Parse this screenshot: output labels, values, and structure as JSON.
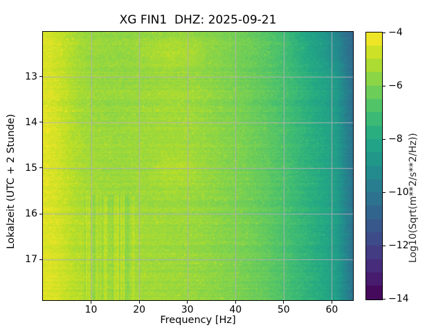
{
  "chart_data": {
    "type": "heatmap",
    "title": "XG FIN1  DHZ: 2025-09-21",
    "xlabel": "Frequency [Hz]",
    "ylabel": "Lokalzeit (UTC + 2 Stunde)",
    "colorbar_label": "Log10(Sqrt(m**2/s**2/Hz))",
    "colormap": "viridis",
    "xlim": [
      0,
      64.4
    ],
    "ylim_hours": [
      12.02,
      17.89
    ],
    "xticks": [
      10,
      20,
      30,
      40,
      50,
      60
    ],
    "yticks": [
      13,
      14,
      15,
      16,
      17
    ],
    "colorbar_ticks": [
      -4,
      -6,
      -8,
      -10,
      -12,
      -14
    ],
    "clim": [
      -14,
      -4
    ],
    "grid": true,
    "freq_bins": [
      0,
      1.5,
      3,
      5,
      7,
      9,
      12,
      15,
      18,
      22,
      26,
      30,
      34,
      38,
      42,
      46,
      50,
      54,
      58,
      61,
      63,
      64.4
    ],
    "time_bins": [
      12.05,
      12.5,
      13.0,
      13.5,
      14.0,
      14.5,
      15.0,
      15.5,
      16.0,
      16.5,
      17.0,
      17.5,
      17.89
    ],
    "values": [
      [
        -4.5,
        -4.6,
        -4.75,
        -5.0,
        -5.3,
        -5.45,
        -5.55,
        -5.6,
        -5.6,
        -5.55,
        -5.5,
        -5.55,
        -5.7,
        -5.9,
        -6.15,
        -6.5,
        -7.0,
        -7.9,
        -8.6,
        -9.3,
        -10.2,
        -10.6
      ],
      [
        -4.5,
        -4.6,
        -4.75,
        -5.0,
        -5.3,
        -5.45,
        -5.55,
        -5.6,
        -5.6,
        -5.3,
        -5.15,
        -5.2,
        -5.6,
        -5.9,
        -6.15,
        -6.5,
        -7.0,
        -7.8,
        -8.5,
        -9.2,
        -10.1,
        -10.5
      ],
      [
        -4.5,
        -4.6,
        -4.75,
        -5.0,
        -5.3,
        -5.45,
        -5.55,
        -5.6,
        -5.6,
        -5.55,
        -5.5,
        -5.55,
        -5.7,
        -5.9,
        -6.15,
        -6.5,
        -6.95,
        -7.55,
        -8.1,
        -8.6,
        -9.7,
        -10.3
      ],
      [
        -4.5,
        -4.6,
        -4.75,
        -5.0,
        -5.3,
        -5.45,
        -5.55,
        -5.6,
        -5.55,
        -5.45,
        -5.35,
        -5.4,
        -5.6,
        -5.85,
        -6.1,
        -6.5,
        -6.95,
        -7.55,
        -8.1,
        -8.6,
        -9.7,
        -10.3
      ],
      [
        -4.4,
        -4.5,
        -4.7,
        -5.0,
        -5.3,
        -5.45,
        -5.55,
        -5.6,
        -5.55,
        -5.45,
        -5.4,
        -5.4,
        -5.65,
        -5.85,
        -6.1,
        -6.45,
        -6.9,
        -7.5,
        -8.05,
        -8.55,
        -9.65,
        -10.3
      ],
      [
        -4.45,
        -4.55,
        -4.7,
        -5.0,
        -5.25,
        -5.4,
        -5.5,
        -5.55,
        -5.55,
        -5.5,
        -5.45,
        -5.5,
        -5.65,
        -5.85,
        -6.1,
        -6.45,
        -6.9,
        -7.5,
        -8.0,
        -8.5,
        -9.6,
        -10.2
      ],
      [
        -4.5,
        -4.6,
        -4.7,
        -5.0,
        -5.25,
        -5.4,
        -5.5,
        -5.55,
        -5.55,
        -5.45,
        -5.15,
        -5.2,
        -5.6,
        -5.85,
        -6.1,
        -6.45,
        -6.9,
        -7.5,
        -8.0,
        -8.5,
        -9.6,
        -10.2
      ],
      [
        -4.45,
        -4.55,
        -4.7,
        -4.95,
        -5.2,
        -5.35,
        -5.45,
        -5.5,
        -5.55,
        -5.5,
        -5.45,
        -5.5,
        -5.65,
        -5.85,
        -6.1,
        -6.45,
        -6.9,
        -7.45,
        -8.0,
        -8.5,
        -9.6,
        -10.2
      ],
      [
        -4.45,
        -4.55,
        -4.65,
        -4.9,
        -5.15,
        -5.2,
        -5.25,
        -5.3,
        -5.35,
        -5.45,
        -5.45,
        -5.5,
        -5.65,
        -5.85,
        -6.1,
        -6.4,
        -6.85,
        -7.45,
        -7.95,
        -8.45,
        -9.55,
        -10.15
      ],
      [
        -4.45,
        -4.5,
        -4.6,
        -4.9,
        -5.1,
        -5.15,
        -5.2,
        -5.25,
        -5.3,
        -5.4,
        -5.45,
        -5.5,
        -5.65,
        -5.8,
        -5.95,
        -6.35,
        -6.85,
        -7.4,
        -7.95,
        -8.45,
        -9.55,
        -10.15
      ],
      [
        -4.5,
        -4.55,
        -4.65,
        -4.9,
        -5.15,
        -5.25,
        -5.3,
        -5.3,
        -5.4,
        -5.45,
        -5.5,
        -5.55,
        -5.65,
        -5.85,
        -6.1,
        -6.4,
        -6.85,
        -7.45,
        -7.95,
        -8.45,
        -9.55,
        -10.15
      ],
      [
        -4.45,
        -4.5,
        -4.6,
        -4.85,
        -5.05,
        -5.2,
        -5.25,
        -5.25,
        -5.35,
        -5.4,
        -5.45,
        -5.5,
        -5.65,
        -5.85,
        -6.05,
        -6.4,
        -6.85,
        -7.4,
        -7.95,
        -8.45,
        -9.55,
        -10.15
      ],
      [
        -4.5,
        -4.55,
        -4.65,
        -4.9,
        -5.1,
        -5.25,
        -5.3,
        -5.3,
        -5.4,
        -5.45,
        -5.5,
        -5.55,
        -5.7,
        -5.85,
        -6.1,
        -6.4,
        -6.85,
        -7.45,
        -7.95,
        -8.45,
        -9.55,
        -10.15
      ]
    ],
    "colorbar_steps": 20
  },
  "colors": {
    "background": "#ffffff",
    "axis": "#000000",
    "gridline": "#b0b0b0",
    "viridis_stops": [
      "#440154",
      "#482475",
      "#414487",
      "#355f8d",
      "#2a788e",
      "#21918c",
      "#22a884",
      "#44bf70",
      "#7ad151",
      "#bddf26",
      "#fde725"
    ]
  }
}
